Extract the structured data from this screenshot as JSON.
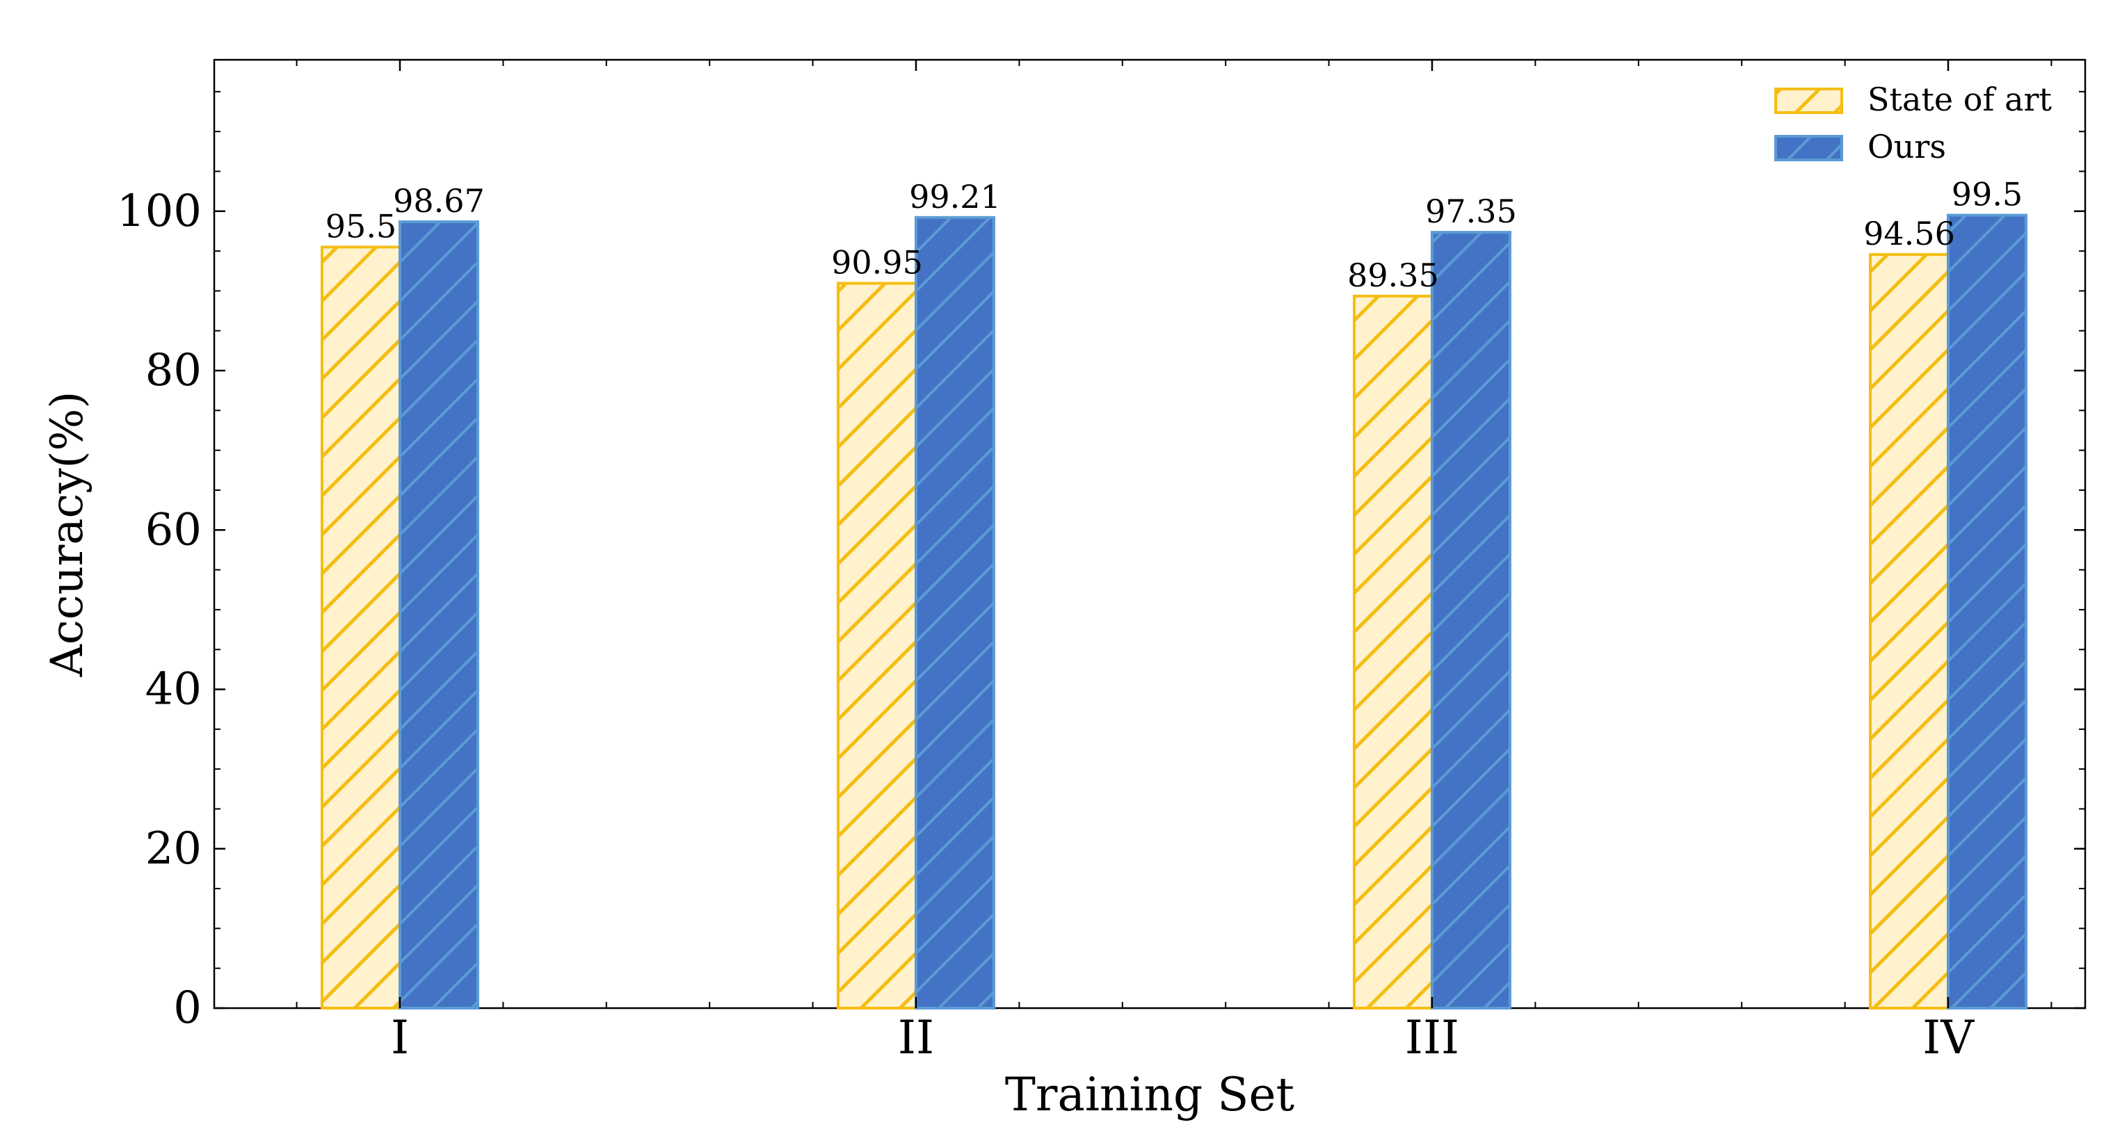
{
  "chart_data": {
    "type": "bar",
    "categories": [
      "I",
      "II",
      "III",
      "IV"
    ],
    "series": [
      {
        "name": "State of art",
        "values": [
          95.5,
          90.95,
          89.35,
          94.56
        ],
        "fill": "#fff2cc",
        "stroke": "#f5bd12",
        "hatch": "#f5bd12"
      },
      {
        "name": "Ours",
        "values": [
          98.67,
          99.21,
          97.35,
          99.5
        ],
        "fill": "#4472c4",
        "stroke": "#5b9bd5",
        "hatch": "#5b9bd5"
      }
    ],
    "data_labels": [
      [
        "95.5",
        "90.95",
        "89.35",
        "94.56"
      ],
      [
        "98.67",
        "99.21",
        "97.35",
        "99.5"
      ]
    ],
    "xlabel": "Training Set",
    "ylabel": "Accuracy(%)",
    "ylim": [
      0,
      119
    ],
    "yticks": [
      0,
      20,
      40,
      60,
      80,
      100
    ],
    "grid": false,
    "legend": "top-right"
  }
}
